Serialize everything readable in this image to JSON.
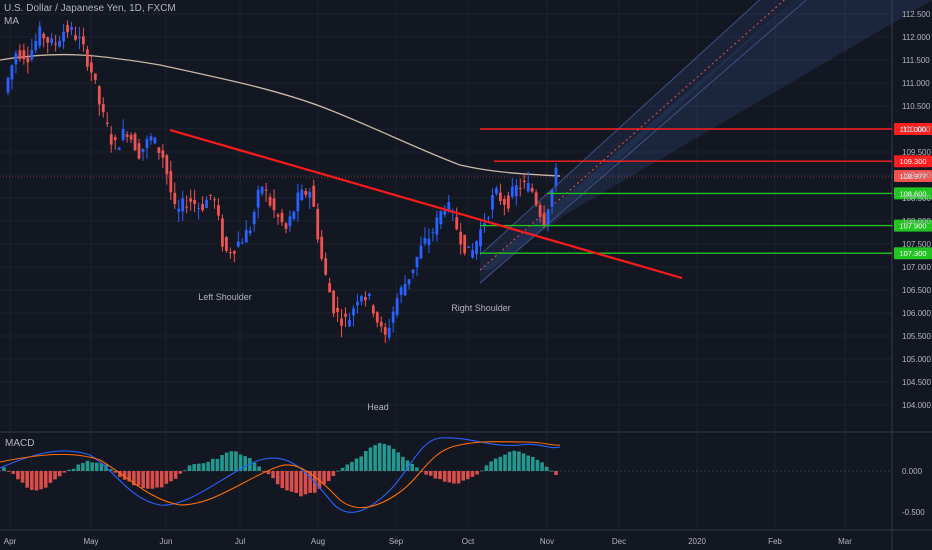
{
  "header": {
    "title": "U.S. Dollar / Japanese Yen, 1D, FXCM",
    "ma_label": "MA"
  },
  "macd_label": "MACD",
  "colors": {
    "bg": "#131722",
    "up": "#2962ff",
    "down": "#ef5350",
    "ma": "#c8b7a6",
    "trendline": "#ff1a1a",
    "red_level": "#ff1f1f",
    "green_level": "#22c422",
    "channel": "#3a5a9a",
    "hist_pos": "#26a69a",
    "hist_neg": "#ef5350",
    "macd_line": "#2962ff",
    "signal_line": "#ff6d00"
  },
  "chart_data": [
    {
      "type": "candlestick",
      "title": "U.S. Dollar / Japanese Yen, 1D, FXCM",
      "symbol": "USDJPY",
      "timeframe": "1D",
      "x_axis": [
        "Apr",
        "May",
        "Jun",
        "Jul",
        "Aug",
        "Sep",
        "Oct",
        "Nov",
        "Dec",
        "2020",
        "Feb",
        "Mar"
      ],
      "y_ticks": [
        "112.500",
        "112.000",
        "111.500",
        "111.000",
        "110.500",
        "110.000",
        "109.500",
        "109.000",
        "108.500",
        "108.000",
        "107.500",
        "107.000",
        "106.500",
        "106.000",
        "105.500",
        "105.000",
        "104.500",
        "104.000"
      ],
      "ylim": [
        103.5,
        112.6
      ],
      "ohlc_path": [
        [
          "Apr",
          110.8
        ],
        [
          "Apr",
          111.7
        ],
        [
          "Apr",
          111.6
        ],
        [
          "Apr",
          112.1
        ],
        [
          "Apr",
          111.8
        ],
        [
          "Apr",
          112.2
        ],
        [
          "Apr",
          112.0
        ],
        [
          "May",
          111.4
        ],
        [
          "May",
          110.3
        ],
        [
          "May",
          109.6
        ],
        [
          "May",
          110.0
        ],
        [
          "May",
          109.5
        ],
        [
          "May",
          109.8
        ],
        [
          "May",
          109.4
        ],
        [
          "Jun",
          108.1
        ],
        [
          "Jun",
          108.5
        ],
        [
          "Jun",
          108.3
        ],
        [
          "Jun",
          108.6
        ],
        [
          "Jun",
          107.3
        ],
        [
          "Jun",
          107.5
        ],
        [
          "Jul",
          107.8
        ],
        [
          "Jul",
          108.8
        ],
        [
          "Jul",
          108.2
        ],
        [
          "Jul",
          107.8
        ],
        [
          "Jul",
          108.5
        ],
        [
          "Jul",
          108.7
        ],
        [
          "Aug",
          107.0
        ],
        [
          "Aug",
          106.0
        ],
        [
          "Aug",
          105.8
        ],
        [
          "Aug",
          106.5
        ],
        [
          "Aug",
          106.2
        ],
        [
          "Aug",
          105.4
        ],
        [
          "Sep",
          106.3
        ],
        [
          "Sep",
          106.8
        ],
        [
          "Sep",
          107.4
        ],
        [
          "Sep",
          107.8
        ],
        [
          "Sep",
          108.4
        ],
        [
          "Sep",
          107.8
        ],
        [
          "Oct",
          107.2
        ],
        [
          "Oct",
          107.9
        ],
        [
          "Oct",
          108.6
        ],
        [
          "Oct",
          108.4
        ],
        [
          "Oct",
          108.8
        ],
        [
          "Oct",
          108.7
        ],
        [
          "Nov",
          108.0
        ],
        [
          "Nov",
          109.0
        ]
      ],
      "last_price": "108.977",
      "price_levels": [
        {
          "price": 110.0,
          "label": "110.000",
          "color": "red"
        },
        {
          "price": 109.3,
          "label": "109.300",
          "color": "red"
        },
        {
          "price": 108.6,
          "label": "108.600",
          "color": "green"
        },
        {
          "price": 107.9,
          "label": "107.900",
          "color": "green"
        },
        {
          "price": 107.3,
          "label": "107.300",
          "color": "green"
        }
      ],
      "annotations": [
        "Left Shoulder",
        "Head",
        "Right Shoulder"
      ],
      "trendline": {
        "from": [
          "Apr-May",
          109.9
        ],
        "to": [
          "Dec-2020",
          106.8
        ]
      },
      "moving_average": "MA",
      "ascending_channel": true
    },
    {
      "type": "macd",
      "title": "MACD",
      "y_ticks": [
        "0.000",
        "-0.500"
      ],
      "ylim": [
        -0.65,
        0.5
      ]
    }
  ]
}
